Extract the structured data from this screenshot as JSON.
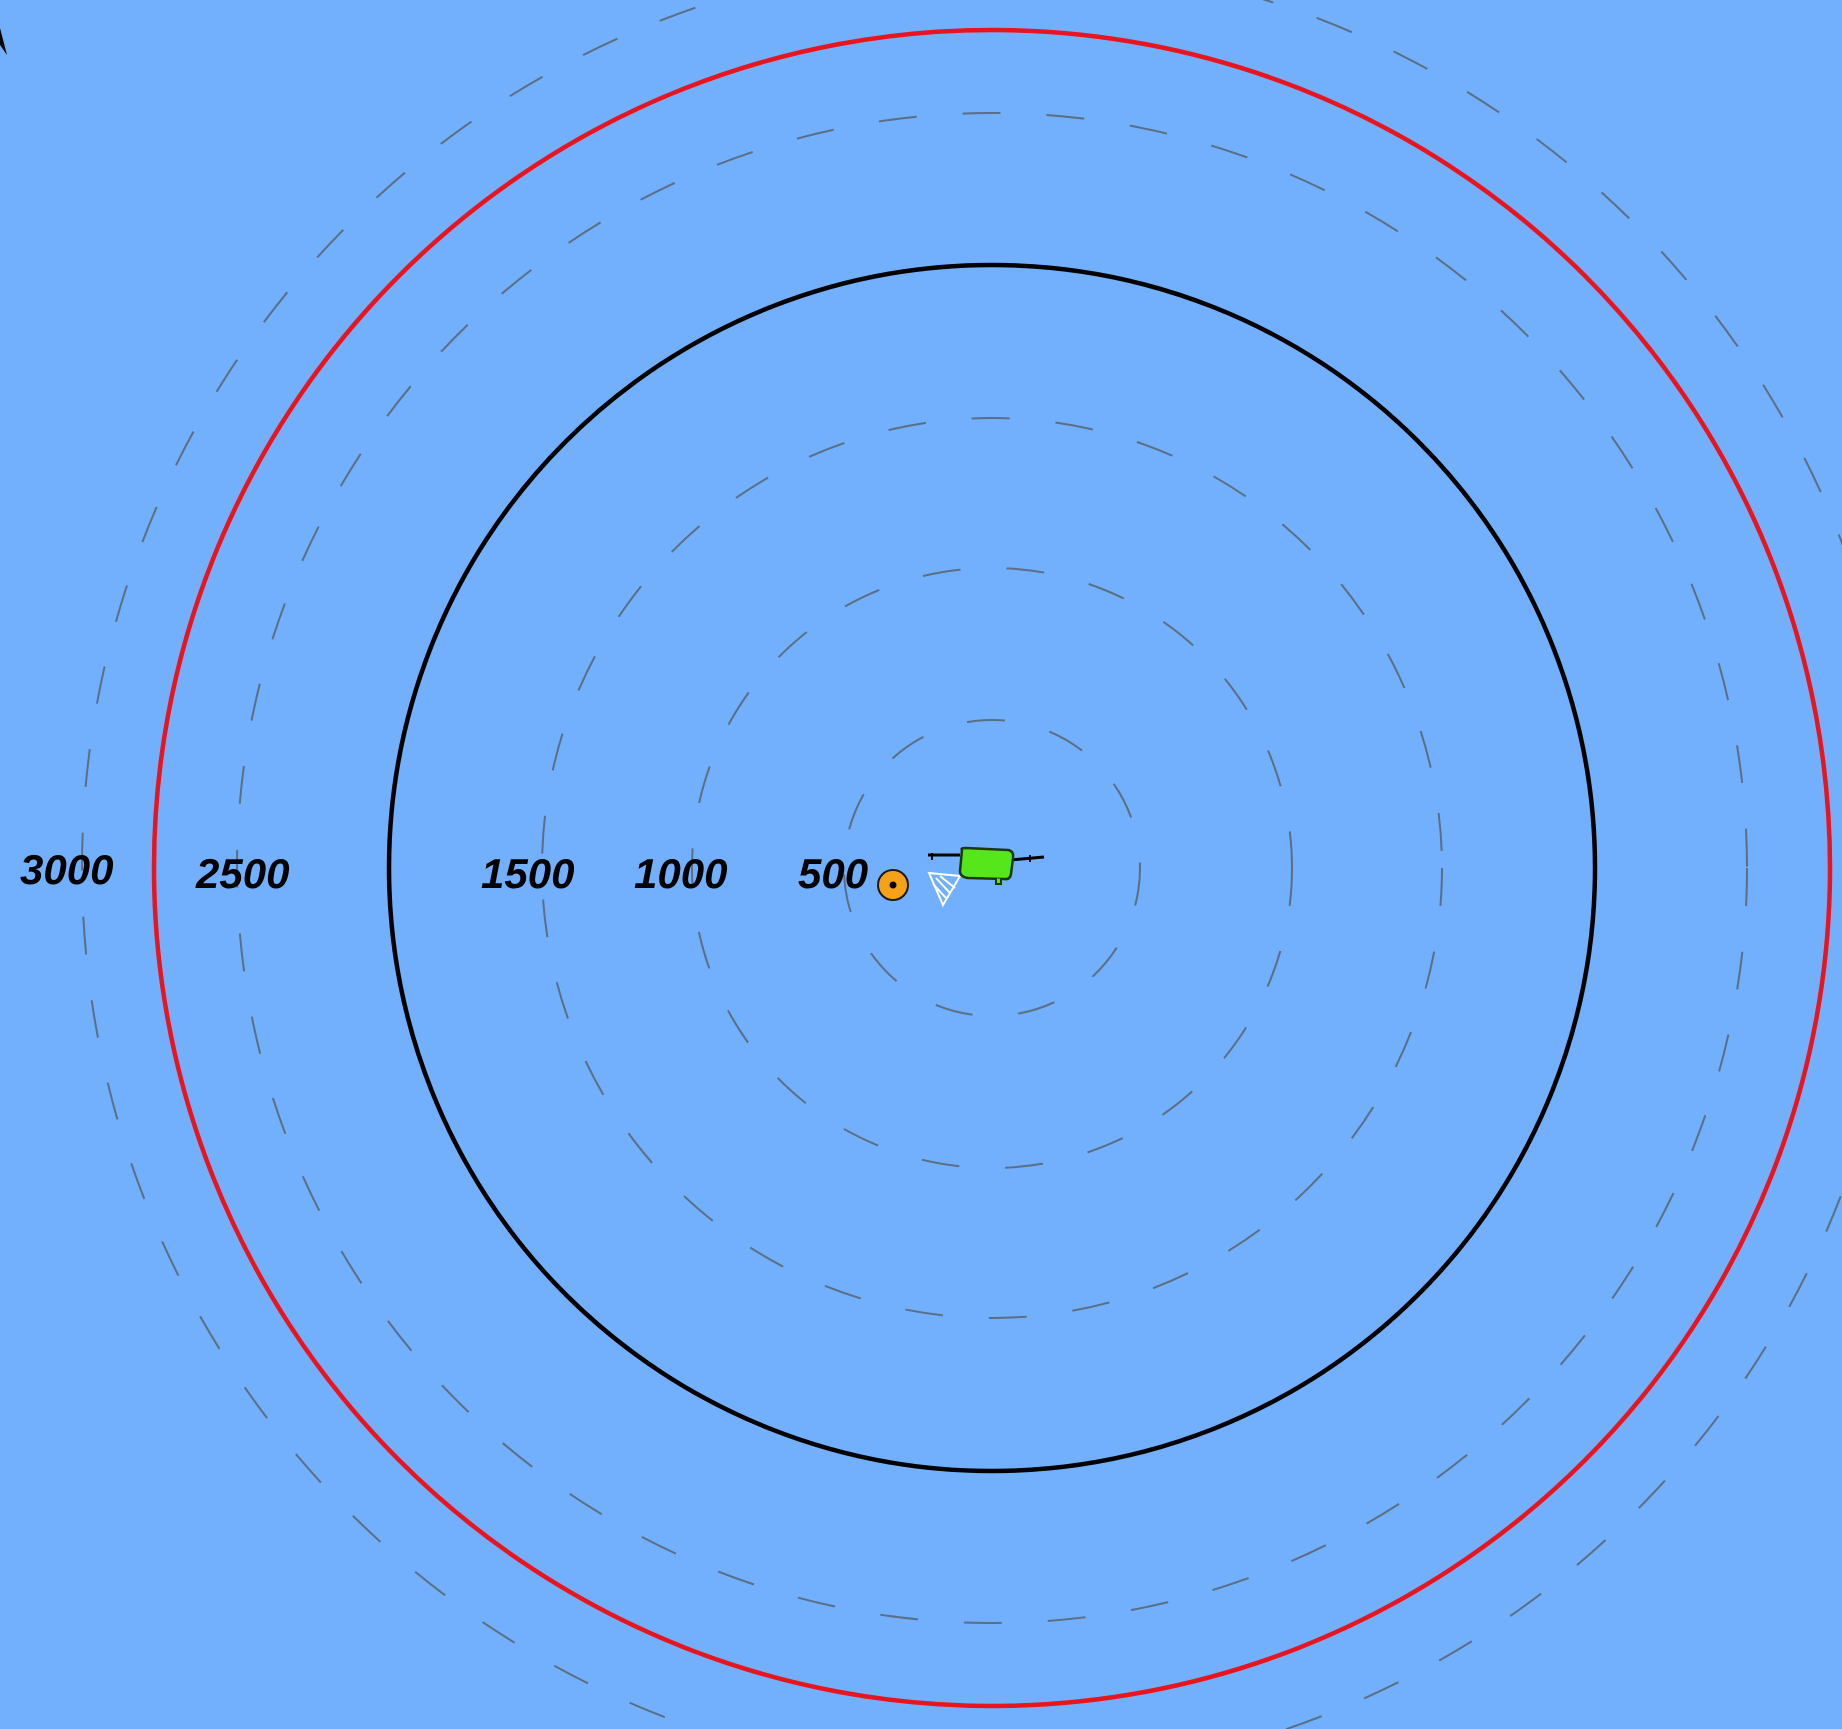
{
  "colors": {
    "water": "#72b0fd",
    "guide_ring": "#5a6e86",
    "warning_ring": "#e8141e",
    "boundary_ring": "#000000",
    "label": "#000000",
    "vessel_body": "#55e61b",
    "vessel_outline": "#1b3a08",
    "target_fill": "#f5a21a",
    "wake": "#ffffff"
  },
  "range_labels": {
    "r3000": "3000",
    "r2500": "2500",
    "r1500": "1500",
    "r1000": "1000",
    "r500": "500"
  },
  "icons": {
    "player": "green-vessel-icon",
    "target": "orange-buoy-icon",
    "wake": "wake-icon",
    "pointer": "cursor-arrow-icon"
  }
}
